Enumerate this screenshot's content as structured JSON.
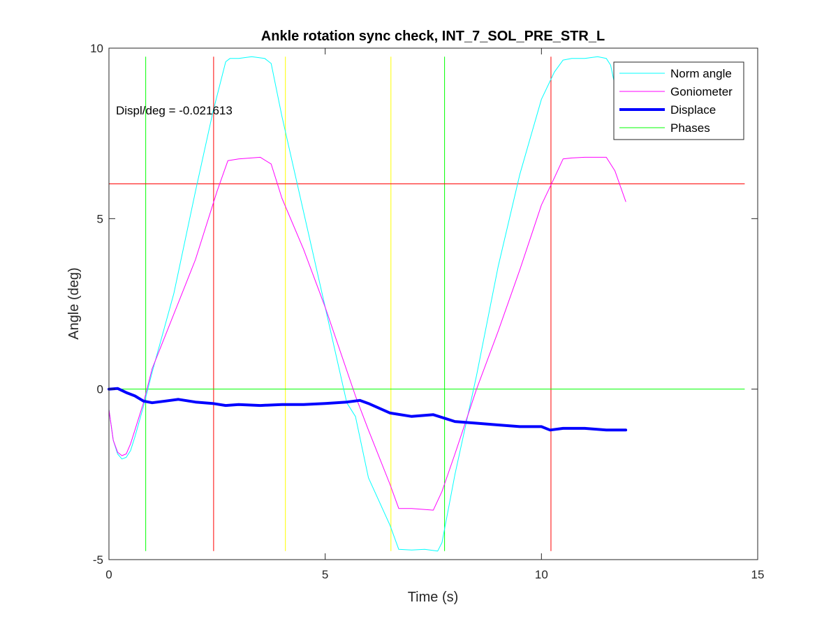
{
  "chart_data": {
    "type": "line",
    "title": "Ankle rotation sync check, INT_7_SOL_PRE_STR_L",
    "xlabel": "Time (s)",
    "ylabel": "Angle (deg)",
    "xlim": [
      0,
      15
    ],
    "ylim": [
      -5,
      10
    ],
    "xticks": [
      0,
      5,
      10,
      15
    ],
    "yticks": [
      -5,
      0,
      5,
      10
    ],
    "grid": false,
    "legend_position": "top-right",
    "annotation": "Displ/deg = -0.021613",
    "series": [
      {
        "name": "Norm angle",
        "color": "#00ffff",
        "width": 1,
        "x": [
          0,
          0.1,
          0.2,
          0.3,
          0.4,
          0.5,
          0.6,
          0.8,
          1.0,
          1.5,
          2.0,
          2.4,
          2.7,
          2.8,
          3.0,
          3.3,
          3.6,
          3.75,
          4.0,
          4.5,
          5.0,
          5.5,
          5.7,
          6.0,
          6.5,
          6.7,
          7.0,
          7.3,
          7.6,
          7.7,
          8.0,
          8.5,
          9.0,
          9.5,
          10.0,
          10.3,
          10.5,
          10.7,
          11.0,
          11.3,
          11.5,
          11.6,
          11.75
        ],
        "y": [
          -0.6,
          -1.5,
          -1.9,
          -2.05,
          -2.0,
          -1.8,
          -1.4,
          -0.5,
          0.5,
          2.8,
          5.8,
          8.1,
          9.6,
          9.7,
          9.7,
          9.75,
          9.7,
          9.55,
          8.0,
          5.2,
          2.4,
          -0.4,
          -0.8,
          -2.6,
          -4.0,
          -4.7,
          -4.72,
          -4.7,
          -4.75,
          -4.5,
          -2.5,
          0.4,
          3.6,
          6.3,
          8.5,
          9.3,
          9.65,
          9.7,
          9.7,
          9.75,
          9.7,
          9.5,
          8.6
        ]
      },
      {
        "name": "Goniometer",
        "color": "#ff00ff",
        "width": 1,
        "x": [
          0,
          0.1,
          0.2,
          0.3,
          0.4,
          0.5,
          0.6,
          0.8,
          1.0,
          1.5,
          2.0,
          2.5,
          2.75,
          3.0,
          3.5,
          3.75,
          4.0,
          4.5,
          5.0,
          5.7,
          6.0,
          6.5,
          6.7,
          7.0,
          7.5,
          7.7,
          8.0,
          8.5,
          9.0,
          9.5,
          10.0,
          10.3,
          10.5,
          10.7,
          11.0,
          11.5,
          11.7,
          11.95
        ],
        "y": [
          -0.6,
          -1.5,
          -1.85,
          -1.95,
          -1.9,
          -1.6,
          -1.2,
          -0.4,
          0.6,
          2.2,
          3.8,
          5.8,
          6.7,
          6.75,
          6.8,
          6.6,
          5.6,
          4.1,
          2.4,
          -0.2,
          -1.2,
          -2.8,
          -3.5,
          -3.5,
          -3.55,
          -3.0,
          -1.9,
          0.0,
          1.7,
          3.5,
          5.4,
          6.2,
          6.75,
          6.78,
          6.8,
          6.8,
          6.4,
          5.5
        ]
      },
      {
        "name": "Displace",
        "color": "#0000ff",
        "width": 4,
        "x": [
          0,
          0.2,
          0.4,
          0.6,
          0.8,
          1.0,
          1.3,
          1.6,
          2.0,
          2.4,
          2.7,
          3.0,
          3.5,
          4.0,
          4.5,
          5.0,
          5.5,
          5.8,
          6.0,
          6.5,
          7.0,
          7.5,
          8.0,
          8.5,
          9.0,
          9.5,
          10.0,
          10.2,
          10.5,
          11.0,
          11.5,
          11.95
        ],
        "y": [
          0.0,
          0.02,
          -0.1,
          -0.2,
          -0.35,
          -0.4,
          -0.35,
          -0.3,
          -0.38,
          -0.42,
          -0.48,
          -0.45,
          -0.48,
          -0.45,
          -0.45,
          -0.42,
          -0.38,
          -0.33,
          -0.42,
          -0.7,
          -0.8,
          -0.75,
          -0.95,
          -1.0,
          -1.05,
          -1.1,
          -1.1,
          -1.2,
          -1.15,
          -1.15,
          -1.2,
          -1.2
        ]
      }
    ],
    "phases": {
      "name": "Phases",
      "color": "#00ff00",
      "lines": [
        {
          "orientation": "vertical",
          "value": 0.85,
          "color": "#00ff00",
          "from": -4.75,
          "to": 9.75
        },
        {
          "orientation": "vertical",
          "value": 2.42,
          "color": "#ff0000",
          "from": -4.75,
          "to": 9.75
        },
        {
          "orientation": "vertical",
          "value": 4.08,
          "color": "#ffff00",
          "from": -4.75,
          "to": 9.75
        },
        {
          "orientation": "vertical",
          "value": 6.52,
          "color": "#ffff00",
          "from": -4.75,
          "to": 9.75
        },
        {
          "orientation": "vertical",
          "value": 7.76,
          "color": "#00ff00",
          "from": -4.75,
          "to": 9.75
        },
        {
          "orientation": "vertical",
          "value": 10.22,
          "color": "#ff0000",
          "from": -4.75,
          "to": 9.75
        },
        {
          "orientation": "horizontal",
          "value": 6.02,
          "color": "#ff0000",
          "from": 0,
          "to": 14.7
        },
        {
          "orientation": "horizontal",
          "value": 0,
          "color": "#00ff00",
          "from": 0,
          "to": 14.7
        }
      ]
    }
  }
}
